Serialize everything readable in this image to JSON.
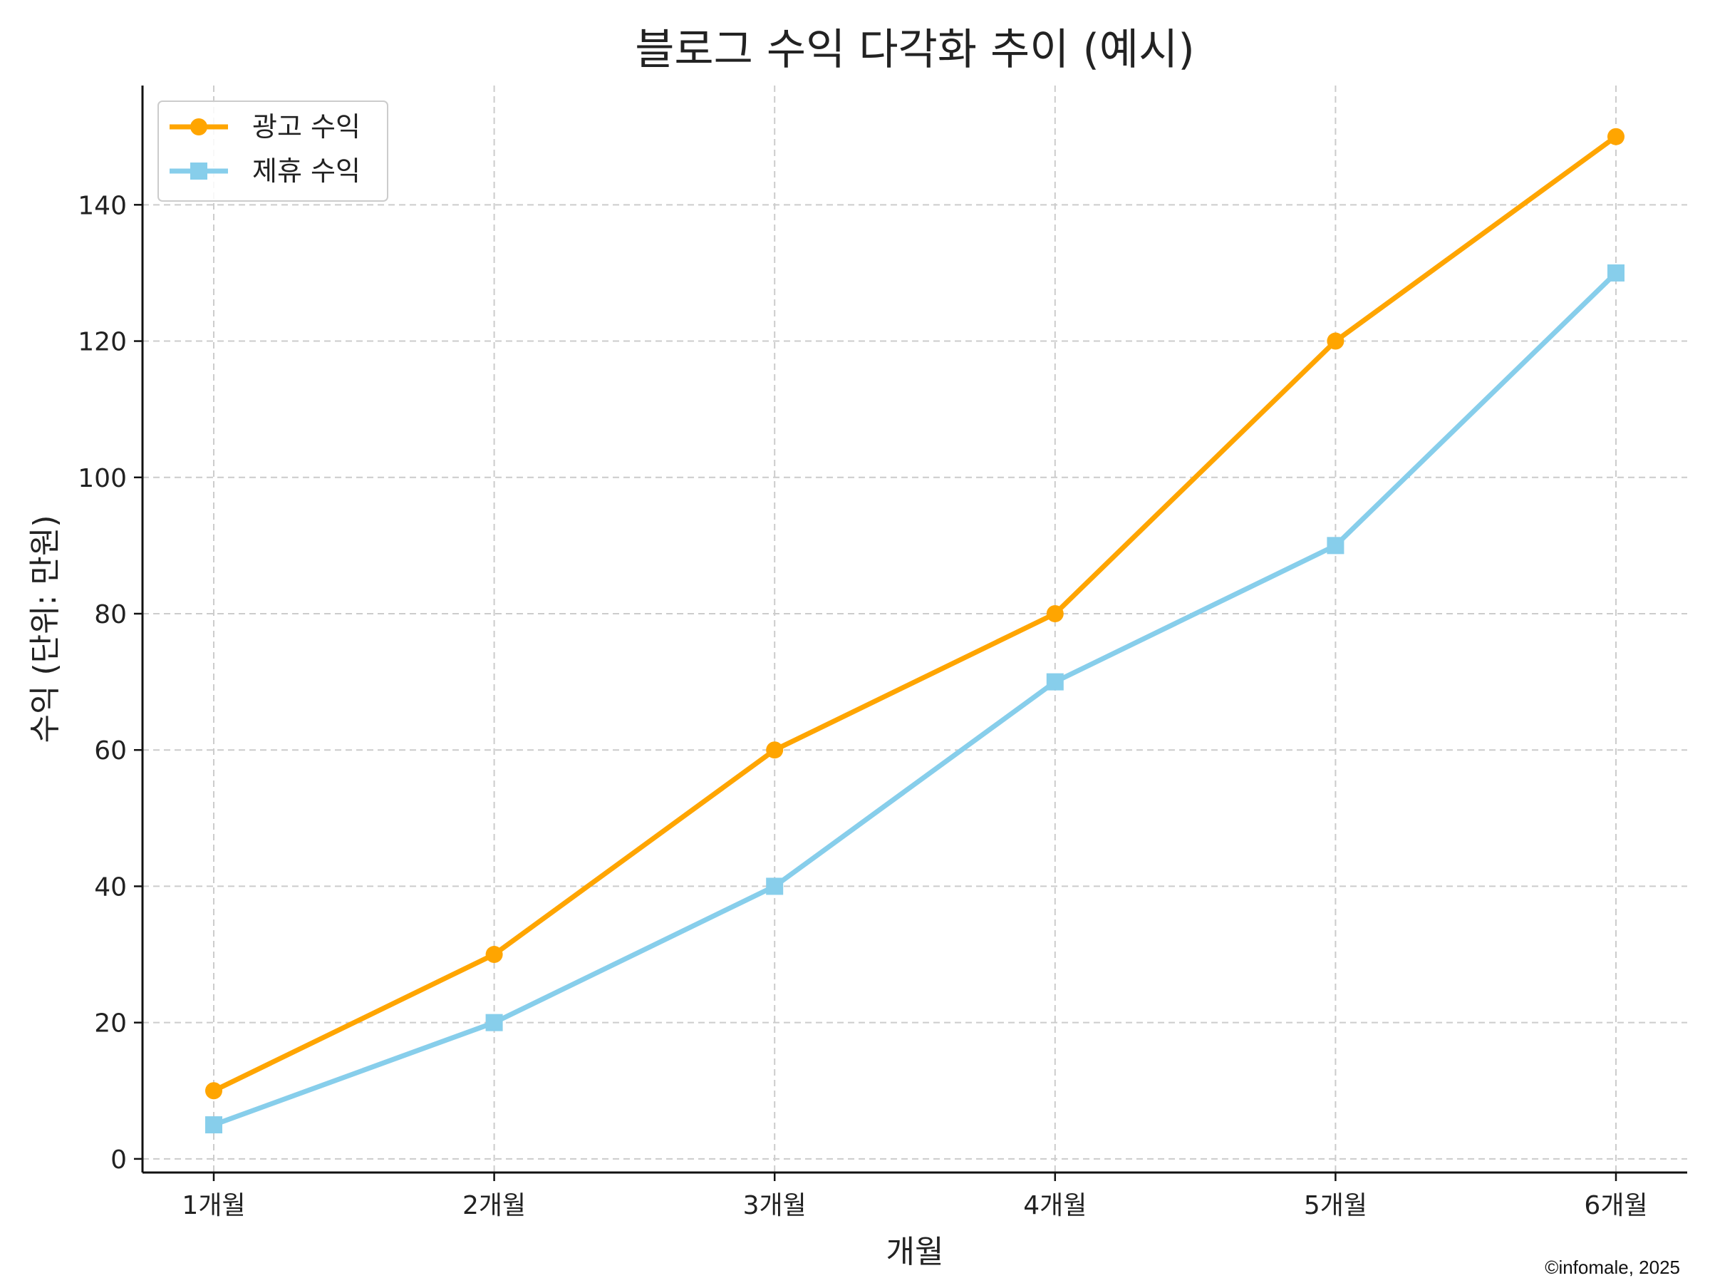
{
  "chart_data": {
    "type": "line",
    "title": "블로그 수익 다각화 추이 (예시)",
    "xlabel": "개월",
    "ylabel": "수익 (단위: 만원)",
    "categories": [
      "1개월",
      "2개월",
      "3개월",
      "4개월",
      "5개월",
      "6개월"
    ],
    "ylim": [
      -2,
      157.5
    ],
    "yticks": [
      0,
      20,
      40,
      60,
      80,
      100,
      120,
      140
    ],
    "grid": true,
    "legend_position": "top-left",
    "series": [
      {
        "name": "광고 수익",
        "values": [
          10,
          30,
          60,
          80,
          120,
          150
        ],
        "color": "#FFA500",
        "marker": "circle"
      },
      {
        "name": "제휴 수익",
        "values": [
          5,
          20,
          40,
          70,
          90,
          130
        ],
        "color": "#87CEEB",
        "marker": "square"
      }
    ]
  },
  "credit": "©infomale, 2025"
}
